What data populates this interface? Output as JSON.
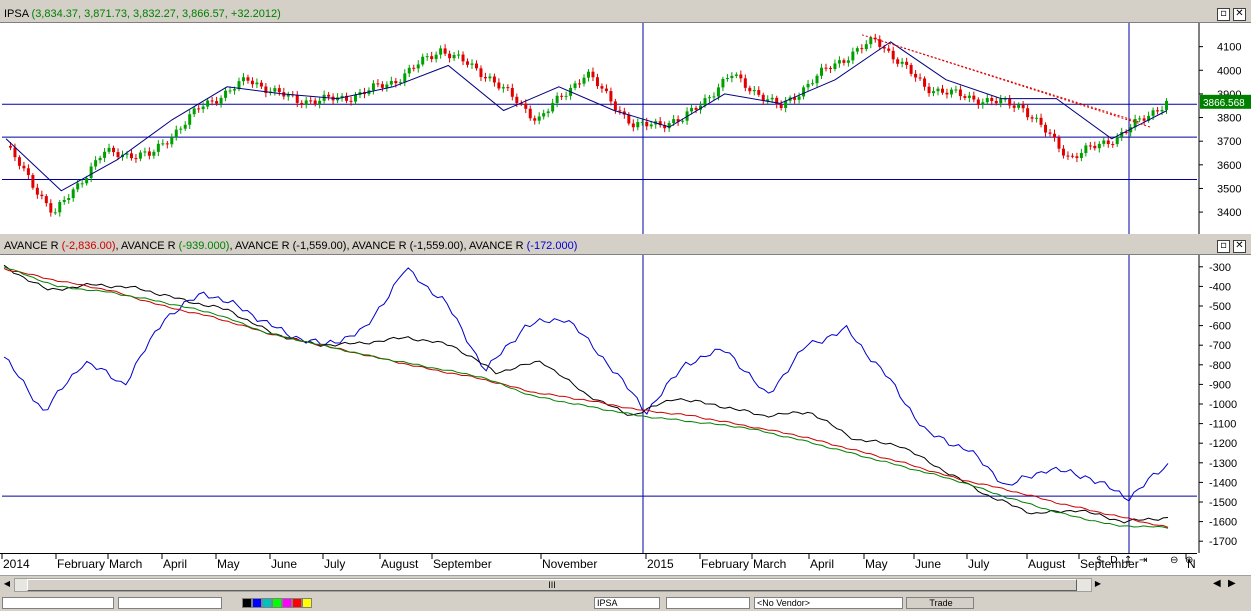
{
  "top_pane": {
    "title_name": "IPSA",
    "title_values": " (3,834.37, 3,871.73, 3,832.27, 3,866.57, +32.2012)",
    "last_price_label": "3866.568",
    "maximize_icon": "maximize-icon",
    "close_icon": "close-icon"
  },
  "bottom_pane": {
    "legend": [
      {
        "name": "AVANCE R",
        "value": "(-2,836.00)",
        "color": "#cc0000"
      },
      {
        "name": "AVANCE R",
        "value": "(-939.000)",
        "color": "#008000"
      },
      {
        "name": "AVANCE R",
        "value": "(-1,559.00)",
        "color": "#000000"
      },
      {
        "name": "AVANCE R",
        "value": "(-1,559.00)",
        "color": "#000000"
      },
      {
        "name": "AVANCE R",
        "value": "(-172.000)",
        "color": "#0000cc"
      }
    ],
    "separator": ", "
  },
  "toolbar": {
    "symbol_value": "IPSA",
    "no_vendor_value": "<No Vendor>",
    "trade_label": "Trade",
    "scroll_grip": "III"
  },
  "colors": {
    "up": "#00a000",
    "down": "#e00000",
    "grid": "#0000a0",
    "ma": "#000080"
  },
  "chart_data": [
    {
      "type": "candlestick",
      "title": "IPSA",
      "ylim": [
        3320,
        4200
      ],
      "y_ticks": [
        3400,
        3500,
        3600,
        3700,
        3800,
        3900,
        4000,
        4100
      ],
      "horizontal_levels": [
        3856,
        3717,
        3538
      ],
      "vertical_markers": [
        "2015",
        "September"
      ],
      "series": [
        {
          "name": "IPSA",
          "x": [
            "2014-01",
            "2014-01-20",
            "2014-02",
            "2014-03",
            "2014-04",
            "2014-05",
            "2014-06",
            "2014-07",
            "2014-08",
            "2014-08-25",
            "2014-09",
            "2014-10",
            "2014-11",
            "2014-12",
            "2015-01",
            "2015-02",
            "2015-03",
            "2015-04",
            "2015-05",
            "2015-06",
            "2015-07",
            "2015-08",
            "2015-08-25",
            "2015-09",
            "2015-10"
          ],
          "values": [
            3680,
            3390,
            3650,
            3640,
            3840,
            3960,
            3870,
            3880,
            3950,
            4090,
            3970,
            3790,
            3990,
            3760,
            3790,
            3980,
            3840,
            4010,
            4130,
            3930,
            3880,
            3850,
            3630,
            3720,
            3866
          ]
        },
        {
          "name": "MA",
          "x": [
            "2014-01",
            "2014-02",
            "2014-03",
            "2014-04",
            "2014-05",
            "2014-06",
            "2014-07",
            "2014-08",
            "2014-09",
            "2014-10",
            "2014-11",
            "2014-12",
            "2015-01",
            "2015-02",
            "2015-03",
            "2015-04",
            "2015-05",
            "2015-06",
            "2015-07",
            "2015-08",
            "2015-09",
            "2015-10"
          ],
          "values": [
            3710,
            3490,
            3620,
            3790,
            3930,
            3900,
            3880,
            3930,
            4020,
            3830,
            3930,
            3830,
            3760,
            3900,
            3860,
            3960,
            4120,
            3960,
            3880,
            3880,
            3710,
            3830
          ]
        }
      ]
    },
    {
      "type": "line",
      "title": "AVANCE R",
      "ylim": [
        -1750,
        -250
      ],
      "y_ticks": [
        -300,
        -400,
        -500,
        -600,
        -700,
        -800,
        -900,
        -1000,
        -1100,
        -1200,
        -1300,
        -1400,
        -1500,
        -1600,
        -1700
      ],
      "horizontal_levels": [
        -1470
      ],
      "vertical_markers": [
        "2015",
        "September"
      ],
      "x_tick_labels": [
        "2014",
        "February",
        "March",
        "April",
        "May",
        "June",
        "July",
        "August",
        "September",
        "November",
        "2015",
        "February",
        "March",
        "April",
        "May",
        "June",
        "July",
        "August",
        "September",
        "N"
      ],
      "series": [
        {
          "name": "AVANCE R",
          "color": "#0000cc",
          "values": [
            -760,
            -1040,
            -780,
            -900,
            -560,
            -430,
            -520,
            -640,
            -700,
            -620,
            -310,
            -480,
            -830,
            -600,
            -560,
            -780,
            -1040,
            -790,
            -720,
            -960,
            -700,
            -620,
            -860,
            -1150,
            -1230,
            -1420,
            -1330,
            -1370,
            -1480,
            -1310
          ]
        },
        {
          "name": "AVANCE R",
          "color": "#000000",
          "values": [
            -300,
            -420,
            -390,
            -410,
            -470,
            -520,
            -640,
            -700,
            -690,
            -660,
            -700,
            -840,
            -780,
            -950,
            -1060,
            -970,
            -1010,
            -1060,
            -1040,
            -1180,
            -1210,
            -1340,
            -1470,
            -1560,
            -1540,
            -1600,
            -1580
          ]
        },
        {
          "name": "AVANCE R",
          "color": "#cc0000",
          "values": [
            -310,
            -370,
            -420,
            -500,
            -560,
            -640,
            -700,
            -760,
            -820,
            -870,
            -940,
            -980,
            -1030,
            -1060,
            -1110,
            -1160,
            -1230,
            -1300,
            -1380,
            -1440,
            -1510,
            -1570,
            -1630
          ]
        },
        {
          "name": "AVANCE R",
          "color": "#008000",
          "values": [
            -300,
            -400,
            -430,
            -480,
            -540,
            -640,
            -700,
            -760,
            -810,
            -860,
            -960,
            -1010,
            -1060,
            -1090,
            -1120,
            -1180,
            -1250,
            -1320,
            -1390,
            -1480,
            -1560,
            -1620,
            -1630
          ]
        }
      ]
    }
  ]
}
